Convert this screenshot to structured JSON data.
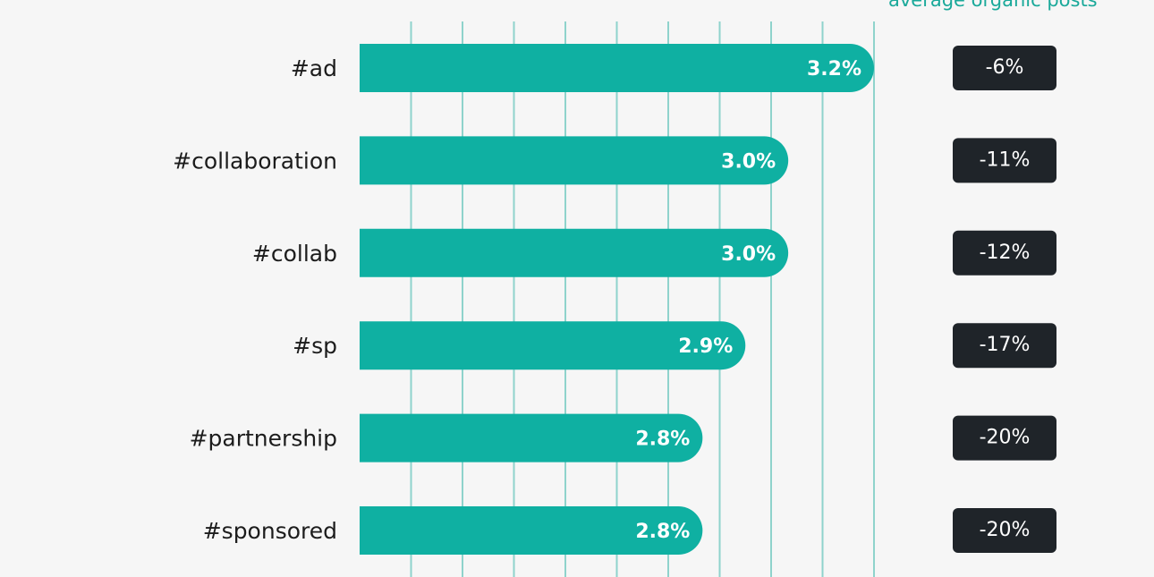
{
  "chart_data": {
    "type": "bar",
    "orientation": "horizontal",
    "categories": [
      "#ad",
      "#collaboration",
      "#collab",
      "#sp",
      "#partnership",
      "#sponsored"
    ],
    "values": [
      3.2,
      3.0,
      3.0,
      2.9,
      2.8,
      2.8
    ],
    "value_labels": [
      "3.2%",
      "3.0%",
      "3.0%",
      "2.9%",
      "2.8%",
      "2.8%"
    ],
    "xlim": [
      2.0,
      3.2
    ],
    "grid": true,
    "comparison_column": {
      "title": "average organic posts",
      "values": [
        "-6%",
        "-11%",
        "-12%",
        "-17%",
        "-20%",
        "-20%"
      ]
    },
    "colors": {
      "bar": "#0fb0a2",
      "grid": "#8fd3cc",
      "badge": "#1f2429",
      "badge_text": "#ffffff",
      "accent_text": "#1aa99a"
    }
  }
}
